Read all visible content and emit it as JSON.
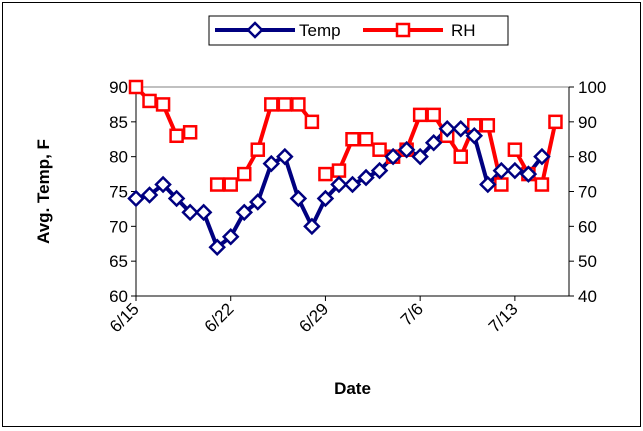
{
  "chart_data": {
    "type": "line",
    "xlabel": "Date",
    "ylabel": "Avg. Temp, F",
    "ylim": [
      60,
      90
    ],
    "y2lim": [
      40,
      100
    ],
    "yticks": [
      60,
      65,
      70,
      75,
      80,
      85,
      90
    ],
    "y2ticks": [
      40,
      50,
      60,
      70,
      80,
      90,
      100
    ],
    "xlim": [
      "6/15",
      "7/17"
    ],
    "xticks": [
      "6/15",
      "6/22",
      "6/29",
      "7/6",
      "7/13"
    ],
    "legend_position": "top",
    "grid": false,
    "series": [
      {
        "name": "Temp",
        "axis": "left",
        "color": "#000080",
        "marker": "diamond",
        "points": [
          [
            "6/15",
            74
          ],
          [
            "6/16",
            74.5
          ],
          [
            "6/17",
            76
          ],
          [
            "6/18",
            74
          ],
          [
            "6/19",
            72
          ],
          [
            "6/20",
            72
          ],
          [
            "6/21",
            67
          ],
          [
            "6/22",
            68.5
          ],
          [
            "6/23",
            72
          ],
          [
            "6/24",
            73.5
          ],
          [
            "6/25",
            79
          ],
          [
            "6/26",
            80
          ],
          [
            "6/27",
            74
          ],
          [
            "6/28",
            70
          ],
          [
            "6/29",
            74
          ],
          [
            "6/30",
            76
          ],
          [
            "7/1",
            76
          ],
          [
            "7/2",
            77
          ],
          [
            "7/3",
            78
          ],
          [
            "7/4",
            80
          ],
          [
            "7/5",
            81
          ],
          [
            "7/6",
            80
          ],
          [
            "7/7",
            82
          ],
          [
            "7/8",
            84
          ],
          [
            "7/9",
            84
          ],
          [
            "7/10",
            83
          ],
          [
            "7/11",
            76
          ],
          [
            "7/12",
            78
          ],
          [
            "7/13",
            78
          ],
          [
            "7/14",
            77.5
          ],
          [
            "7/15",
            80
          ]
        ]
      },
      {
        "name": "RH",
        "axis": "right",
        "color": "#ff0000",
        "marker": "square",
        "points": [
          [
            "6/15",
            100
          ],
          [
            "6/16",
            96
          ],
          [
            "6/17",
            95
          ],
          [
            "6/18",
            86
          ],
          [
            "6/19",
            87
          ],
          [
            "6/20",
            null
          ],
          [
            "6/21",
            72
          ],
          [
            "6/22",
            72
          ],
          [
            "6/23",
            75
          ],
          [
            "6/24",
            82
          ],
          [
            "6/25",
            95
          ],
          [
            "6/26",
            95
          ],
          [
            "6/27",
            95
          ],
          [
            "6/28",
            90
          ],
          [
            "6/29",
            75
          ],
          [
            "6/30",
            76
          ],
          [
            "7/1",
            85
          ],
          [
            "7/2",
            85
          ],
          [
            "7/3",
            82
          ],
          [
            "7/4",
            80
          ],
          [
            "7/5",
            82
          ],
          [
            "7/6",
            92
          ],
          [
            "7/7",
            92
          ],
          [
            "7/8",
            86
          ],
          [
            "7/9",
            80
          ],
          [
            "7/10",
            89
          ],
          [
            "7/11",
            89
          ],
          [
            "7/12",
            72
          ],
          [
            "7/13",
            82
          ],
          [
            "7/14",
            75
          ],
          [
            "7/15",
            72
          ],
          [
            "7/16",
            90
          ]
        ],
        "segment_breaks_after": [
          "6/19",
          "6/28",
          "7/12"
        ]
      }
    ]
  }
}
